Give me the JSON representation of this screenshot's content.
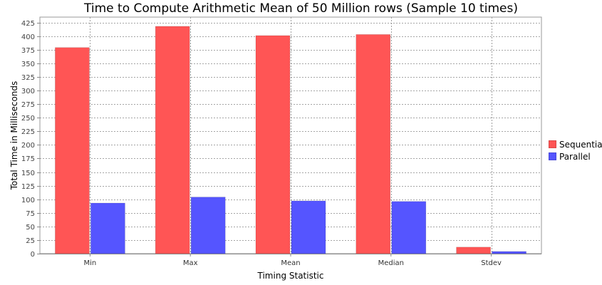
{
  "chart_data": {
    "type": "bar",
    "title": "Time to Compute Arithmetic Mean of 50 Million rows (Sample 10 times)",
    "xlabel": "Timing Statistic",
    "ylabel": "Total Time in Milliseconds",
    "categories": [
      "Min",
      "Max",
      "Mean",
      "Median",
      "Stdev"
    ],
    "series": [
      {
        "name": "Sequential",
        "color": "#ff5555",
        "values": [
          379,
          418,
          401,
          403,
          12
        ]
      },
      {
        "name": "Parallel",
        "color": "#5555ff",
        "values": [
          93,
          104,
          97,
          96,
          4
        ]
      }
    ],
    "ylim": [
      0,
      435
    ],
    "yticks": [
      0,
      25,
      50,
      75,
      100,
      125,
      150,
      175,
      200,
      225,
      250,
      275,
      300,
      325,
      350,
      375,
      400,
      425
    ],
    "grid": true,
    "legend_position": "right"
  }
}
